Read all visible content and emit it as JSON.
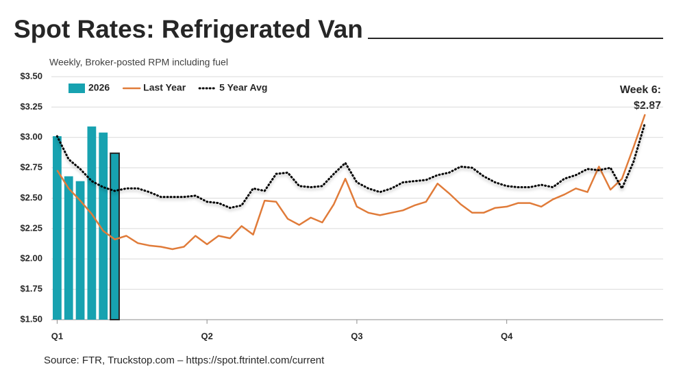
{
  "chart_data": {
    "type": "bar-line",
    "title": "Spot Rates: Refrigerated Van",
    "subtitle": "Weekly, Broker-posted RPM including fuel",
    "source": "Source: FTR, Truckstop.com – https://spot.ftrintel.com/current",
    "annotation": [
      "Week 6:",
      "$2.87"
    ],
    "categories": [
      "Q1",
      null,
      null,
      null,
      null,
      null,
      null,
      null,
      null,
      null,
      null,
      null,
      null,
      "Q2",
      null,
      null,
      null,
      null,
      null,
      null,
      null,
      null,
      null,
      null,
      null,
      null,
      "Q3",
      null,
      null,
      null,
      null,
      null,
      null,
      null,
      null,
      null,
      null,
      null,
      null,
      "Q4",
      null,
      null,
      null,
      null,
      null,
      null,
      null,
      null,
      null,
      null,
      null,
      null
    ],
    "series": [
      {
        "name": "2026",
        "kind": "bar",
        "color": "#17a2b0",
        "values": [
          3.01,
          2.68,
          2.64,
          3.09,
          3.04,
          2.87,
          null,
          null,
          null,
          null,
          null,
          null,
          null,
          null,
          null,
          null,
          null,
          null,
          null,
          null,
          null,
          null,
          null,
          null,
          null,
          null,
          null,
          null,
          null,
          null,
          null,
          null,
          null,
          null,
          null,
          null,
          null,
          null,
          null,
          null,
          null,
          null,
          null,
          null,
          null,
          null,
          null,
          null,
          null,
          null,
          null,
          null
        ]
      },
      {
        "name": "Last Year",
        "kind": "line",
        "color": "#e07b39",
        "values": [
          2.73,
          2.58,
          2.48,
          2.37,
          2.23,
          2.16,
          2.19,
          2.13,
          2.11,
          2.1,
          2.08,
          2.1,
          2.19,
          2.12,
          2.19,
          2.17,
          2.27,
          2.2,
          2.48,
          2.47,
          2.33,
          2.28,
          2.34,
          2.3,
          2.45,
          2.66,
          2.43,
          2.38,
          2.36,
          2.38,
          2.4,
          2.44,
          2.47,
          2.62,
          2.54,
          2.45,
          2.38,
          2.38,
          2.42,
          2.43,
          2.46,
          2.46,
          2.43,
          2.49,
          2.53,
          2.58,
          2.55,
          2.76,
          2.57,
          2.66,
          2.92,
          3.19
        ]
      },
      {
        "name": "5 Year Avg",
        "kind": "line",
        "dash": "dotted",
        "color": "#000000",
        "values": [
          3.01,
          2.82,
          2.74,
          2.64,
          2.59,
          2.56,
          2.58,
          2.58,
          2.55,
          2.51,
          2.51,
          2.51,
          2.52,
          2.47,
          2.46,
          2.42,
          2.44,
          2.58,
          2.56,
          2.7,
          2.71,
          2.6,
          2.59,
          2.6,
          2.7,
          2.79,
          2.63,
          2.58,
          2.55,
          2.58,
          2.63,
          2.64,
          2.65,
          2.69,
          2.71,
          2.76,
          2.75,
          2.68,
          2.63,
          2.6,
          2.59,
          2.59,
          2.61,
          2.59,
          2.66,
          2.69,
          2.74,
          2.73,
          2.75,
          2.58,
          2.8,
          3.12
        ]
      }
    ],
    "ylim": [
      1.5,
      3.5
    ],
    "yticks": [
      {
        "value": 1.5,
        "label": "$1.50"
      },
      {
        "value": 1.75,
        "label": "$1.75"
      },
      {
        "value": 2,
        "label": "$2.00"
      },
      {
        "value": 2.25,
        "label": "$2.25"
      },
      {
        "value": 2.5,
        "label": "$2.50"
      },
      {
        "value": 2.75,
        "label": "$2.75"
      },
      {
        "value": 3,
        "label": "$3.00"
      },
      {
        "value": 3.25,
        "label": "$3.25"
      },
      {
        "value": 3.5,
        "label": "$3.50"
      }
    ],
    "grid": true,
    "legend": "top-left"
  }
}
